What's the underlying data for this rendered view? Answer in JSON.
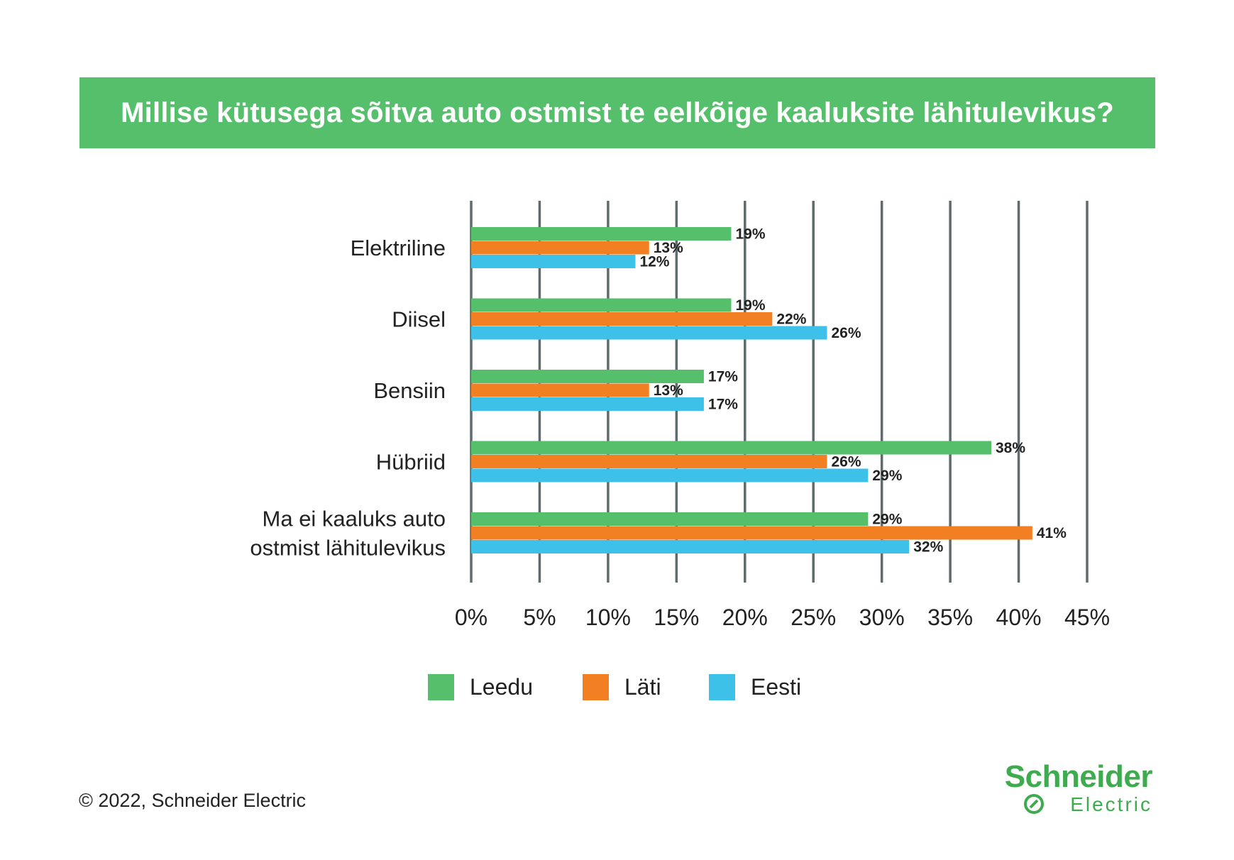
{
  "title": "Millise kütusega sõitva auto ostmist te eelkõige kaaluksite lähitulevikus?",
  "copyright": "© 2022, Schneider Electric",
  "brand": {
    "name": "Schneider",
    "subname": "Electric"
  },
  "colors": {
    "banner": "#55bf6b",
    "Leedu": "#55bf6b",
    "Läti": "#f27f22",
    "Eesti": "#3ec1e8",
    "grid": "#5f6b6d"
  },
  "chart_data": {
    "type": "bar",
    "orientation": "horizontal",
    "categories": [
      "Elektriline",
      "Diisel",
      "Bensiin",
      "Hübriid",
      "Ma ei kaaluks auto ostmist lähitulevikus"
    ],
    "category_lines": [
      [
        "Elektriline"
      ],
      [
        "Diisel"
      ],
      [
        "Bensiin"
      ],
      [
        "Hübriid"
      ],
      [
        "Ma ei kaaluks auto",
        "ostmist lähitulevikus"
      ]
    ],
    "series": [
      {
        "name": "Leedu",
        "values": [
          19,
          19,
          17,
          38,
          29
        ]
      },
      {
        "name": "Läti",
        "values": [
          13,
          22,
          13,
          26,
          41
        ]
      },
      {
        "name": "Eesti",
        "values": [
          12,
          26,
          17,
          29,
          32
        ]
      }
    ],
    "data_labels": [
      [
        "19%",
        "19%",
        "17%",
        "38%",
        "29%"
      ],
      [
        "13%",
        "22%",
        "13%",
        "26%",
        "41%"
      ],
      [
        "12%",
        "26%",
        "17%",
        "29%",
        "32%"
      ]
    ],
    "xlim": [
      0,
      45
    ],
    "xticks": [
      0,
      5,
      10,
      15,
      20,
      25,
      30,
      35,
      40,
      45
    ],
    "xtick_labels": [
      "0%",
      "5%",
      "10%",
      "15%",
      "20%",
      "25%",
      "30%",
      "35%",
      "40%",
      "45%"
    ],
    "grid": "vertical",
    "legend_position": "bottom"
  }
}
